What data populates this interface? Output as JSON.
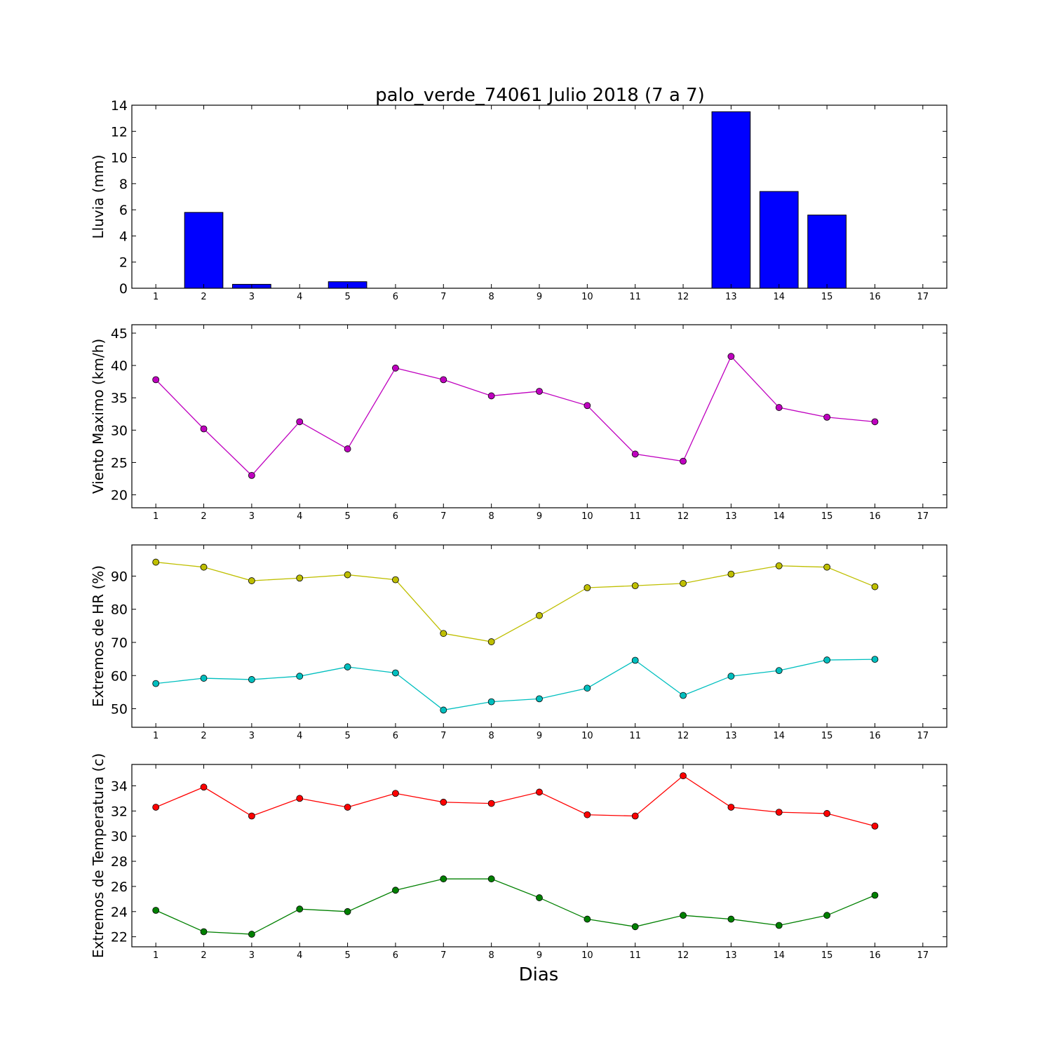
{
  "figure": {
    "title": "palo_verde_74061 Julio 2018  (7 a 7)",
    "xlabel": "Dias"
  },
  "chart_data": [
    {
      "type": "bar",
      "ylabel": "Lluvia (mm)",
      "x_ticks": [
        1,
        2,
        3,
        4,
        5,
        6,
        7,
        8,
        9,
        10,
        11,
        12,
        13,
        14,
        15,
        16,
        17
      ],
      "y_ticks": [
        0,
        2,
        4,
        6,
        8,
        10,
        12,
        14
      ],
      "xlim": [
        0.5,
        17.5
      ],
      "ylim": [
        0,
        14
      ],
      "grid": false,
      "series": [
        {
          "color": "#0000ff",
          "x": [
            1,
            2,
            3,
            4,
            5,
            6,
            7,
            8,
            9,
            10,
            11,
            12,
            13,
            14,
            15,
            16
          ],
          "values": [
            0,
            5.8,
            0.3,
            0,
            0.5,
            0,
            0,
            0,
            0,
            0,
            0,
            0,
            13.5,
            7.4,
            5.6,
            0
          ]
        }
      ]
    },
    {
      "type": "line",
      "ylabel": "Viento Maximo (km/h)",
      "x_ticks": [
        1,
        2,
        3,
        4,
        5,
        6,
        7,
        8,
        9,
        10,
        11,
        12,
        13,
        14,
        15,
        16,
        17
      ],
      "y_ticks": [
        20,
        25,
        30,
        35,
        40,
        45
      ],
      "xlim": [
        0.5,
        17.5
      ],
      "ylim": [
        18,
        46.3
      ],
      "grid": false,
      "series": [
        {
          "color": "#bf00bf",
          "x": [
            1,
            2,
            3,
            4,
            5,
            6,
            7,
            8,
            9,
            10,
            11,
            12,
            13,
            14,
            15,
            16
          ],
          "values": [
            37.8,
            30.2,
            23.0,
            31.3,
            27.1,
            39.6,
            37.8,
            35.3,
            36.0,
            33.8,
            26.3,
            25.2,
            41.4,
            33.5,
            32.0,
            31.3
          ]
        }
      ]
    },
    {
      "type": "line",
      "ylabel": "Extremos de HR (%)",
      "x_ticks": [
        1,
        2,
        3,
        4,
        5,
        6,
        7,
        8,
        9,
        10,
        11,
        12,
        13,
        14,
        15,
        16,
        17
      ],
      "y_ticks": [
        50,
        60,
        70,
        80,
        90
      ],
      "xlim": [
        0.5,
        17.5
      ],
      "ylim": [
        44.4,
        99.4
      ],
      "grid": false,
      "series": [
        {
          "color": "#bfbf00",
          "x": [
            1,
            2,
            3,
            4,
            5,
            6,
            7,
            8,
            9,
            10,
            11,
            12,
            13,
            14,
            15,
            16
          ],
          "values": [
            94.2,
            92.7,
            88.6,
            89.4,
            90.4,
            88.9,
            72.7,
            70.2,
            78.1,
            86.5,
            87.1,
            87.8,
            90.6,
            93.1,
            92.7,
            86.8
          ]
        },
        {
          "color": "#00bfbf",
          "x": [
            1,
            2,
            3,
            4,
            5,
            6,
            7,
            8,
            9,
            10,
            11,
            12,
            13,
            14,
            15,
            16
          ],
          "values": [
            57.6,
            59.2,
            58.8,
            59.8,
            62.6,
            60.8,
            49.6,
            52.1,
            53.0,
            56.2,
            64.6,
            54.0,
            59.8,
            61.5,
            64.7,
            64.9
          ]
        }
      ]
    },
    {
      "type": "line",
      "ylabel": "Extremos de Temperatura (c)",
      "x_ticks": [
        1,
        2,
        3,
        4,
        5,
        6,
        7,
        8,
        9,
        10,
        11,
        12,
        13,
        14,
        15,
        16,
        17
      ],
      "y_ticks": [
        22,
        24,
        26,
        28,
        30,
        32,
        34
      ],
      "xlim": [
        0.5,
        17.5
      ],
      "ylim": [
        21.2,
        35.7
      ],
      "grid": false,
      "series": [
        {
          "color": "#ff0000",
          "x": [
            1,
            2,
            3,
            4,
            5,
            6,
            7,
            8,
            9,
            10,
            11,
            12,
            13,
            14,
            15,
            16
          ],
          "values": [
            32.3,
            33.9,
            31.6,
            33.0,
            32.3,
            33.4,
            32.7,
            32.6,
            33.5,
            31.7,
            31.6,
            34.8,
            32.3,
            31.9,
            31.8,
            30.8
          ]
        },
        {
          "color": "#008000",
          "x": [
            1,
            2,
            3,
            4,
            5,
            6,
            7,
            8,
            9,
            10,
            11,
            12,
            13,
            14,
            15,
            16
          ],
          "values": [
            24.1,
            22.4,
            22.2,
            24.2,
            24.0,
            25.7,
            26.6,
            26.6,
            25.1,
            23.4,
            22.8,
            23.7,
            23.4,
            22.9,
            23.7,
            25.3
          ]
        }
      ]
    }
  ]
}
